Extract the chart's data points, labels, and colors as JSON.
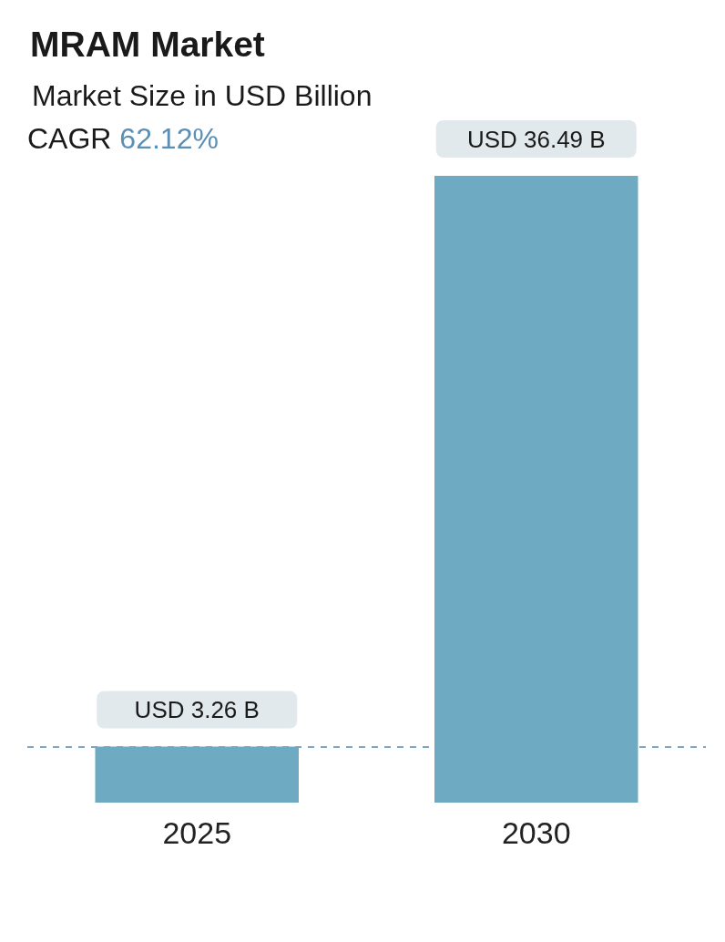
{
  "chart_data": {
    "type": "bar",
    "title": "MRAM Market",
    "subtitle": "Market Size in USD Billion",
    "annotations": [
      "CAGR 62.12%"
    ],
    "categories": [
      "2025",
      "2030"
    ],
    "values": [
      3.26,
      36.49
    ],
    "color": "#6eabc2",
    "value_labels": [
      "USD 3.26 B",
      "USD 36.49 B"
    ],
    "ref_lines": [
      {
        "axis": "y",
        "value": 3.26,
        "color": "#5a86a6",
        "line_style": "dashed"
      }
    ]
  }
}
